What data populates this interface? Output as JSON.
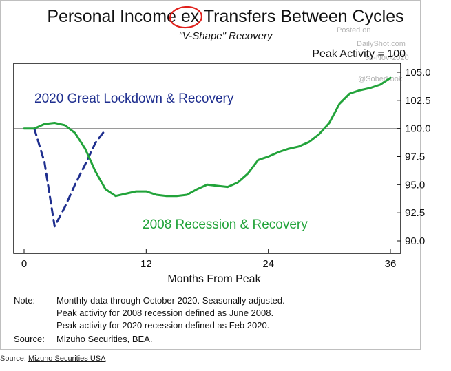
{
  "chart_data": {
    "type": "line",
    "title": "Personal Income ex Transfers Between Cycles",
    "subtitle": "\"V-Shape\" Recovery",
    "peak_note": "Peak Activity = 100",
    "xlabel": "Months From Peak",
    "ylabel": "",
    "xlim": [
      0,
      37
    ],
    "ylim": [
      89.5,
      105.5
    ],
    "x_ticks": [
      0,
      12,
      24,
      36
    ],
    "y_ticks": [
      "90.0",
      "92.5",
      "95.0",
      "97.5",
      "100.0",
      "102.5",
      "105.0"
    ],
    "reference_line": 100,
    "grid": false,
    "series": [
      {
        "name": "2020 Great Lockdown & Recovery",
        "color": "#1f2f8f",
        "style": "dashed",
        "x": [
          1,
          2,
          3,
          4,
          5,
          6,
          7,
          8
        ],
        "y": [
          100.0,
          97.0,
          91.3,
          93.0,
          95.0,
          96.8,
          98.7,
          99.9
        ]
      },
      {
        "name": "2008 Recession & Recovery",
        "color": "#22a33a",
        "style": "solid",
        "x": [
          0,
          1,
          2,
          3,
          4,
          5,
          6,
          7,
          8,
          9,
          10,
          11,
          12,
          13,
          14,
          15,
          16,
          17,
          18,
          19,
          20,
          21,
          22,
          23,
          24,
          25,
          26,
          27,
          28,
          29,
          30,
          31,
          32,
          33,
          34,
          35,
          36
        ],
        "y": [
          100.0,
          100.0,
          100.4,
          100.5,
          100.3,
          99.6,
          98.2,
          96.2,
          94.6,
          94.0,
          94.2,
          94.4,
          94.4,
          94.1,
          94.0,
          94.0,
          94.1,
          94.6,
          95.0,
          94.9,
          94.8,
          95.2,
          96.0,
          97.2,
          97.5,
          97.9,
          98.2,
          98.4,
          98.8,
          99.5,
          100.5,
          102.2,
          103.1,
          103.4,
          103.6,
          103.9,
          104.5
        ]
      }
    ]
  },
  "watermark": {
    "posted_on": "Posted on",
    "site": "DailyShot.com",
    "date": "30-Nov-2020",
    "handle": "@SoberLook"
  },
  "notes": {
    "note_label": "Note:",
    "lines": [
      "Monthly data through October 2020. Seasonally adjusted.",
      "Peak activity for 2008 recession defined as June 2008.",
      "Peak activity for 2020 recession defined as Feb 2020."
    ],
    "source_label": "Source:",
    "source_text": "Mizuho Securities, BEA."
  },
  "footer": {
    "source_prefix": "Source: ",
    "source_link": "Mizuho Securities USA"
  },
  "colors": {
    "annotation_circle": "#e0201b",
    "axis": "#111111",
    "reference_line": "#8c8c8c"
  }
}
